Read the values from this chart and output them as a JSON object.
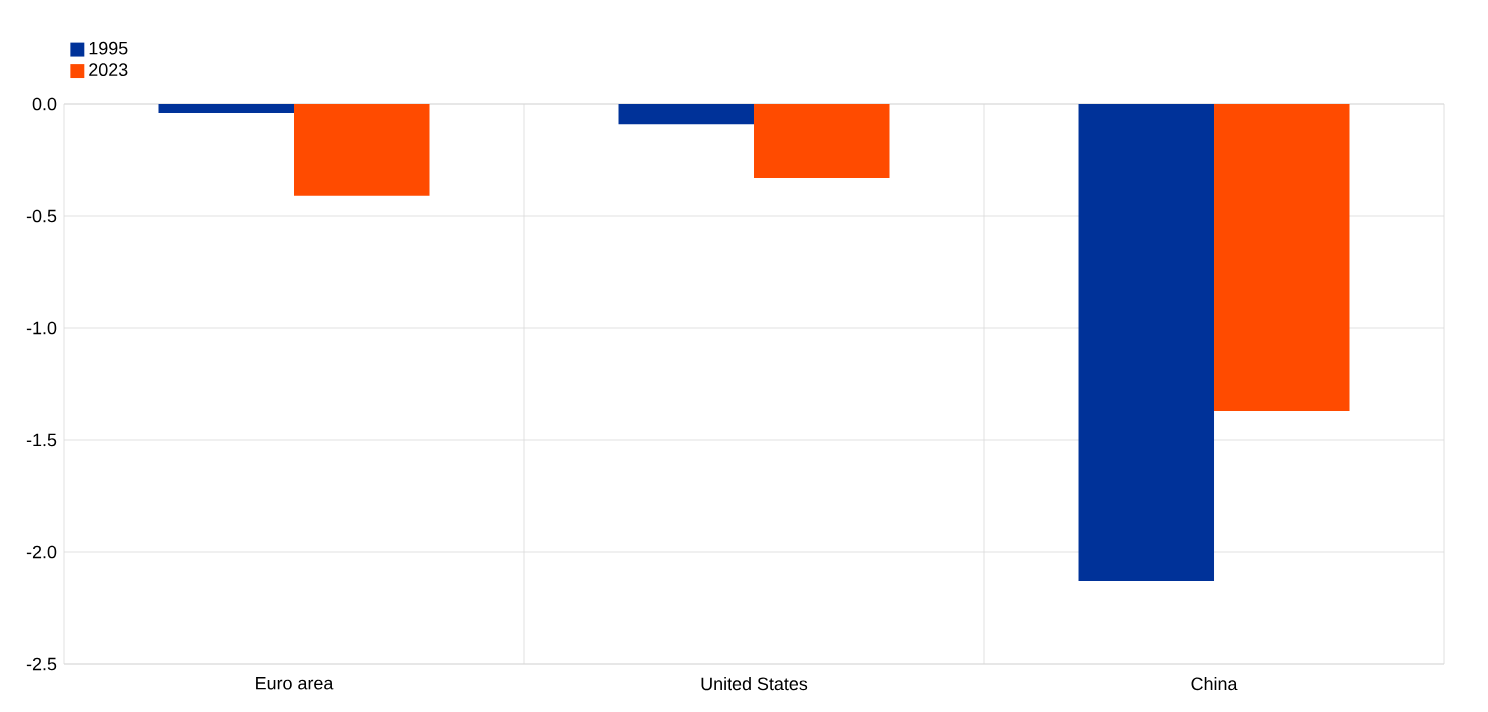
{
  "chart_data": {
    "type": "bar",
    "categories": [
      "Euro area",
      "United States",
      "China"
    ],
    "series": [
      {
        "name": "1995",
        "color": "#003299",
        "values": [
          -0.04,
          -0.09,
          -2.13
        ]
      },
      {
        "name": "2023",
        "color": "#ff4b00",
        "values": [
          -0.41,
          -0.33,
          -1.37
        ]
      }
    ],
    "ylim": [
      -2.5,
      0.0
    ],
    "yticks": [
      {
        "value": 0.0,
        "label": "0.0"
      },
      {
        "value": -0.5,
        "label": "-0.5"
      },
      {
        "value": -1.0,
        "label": "-1.0"
      },
      {
        "value": -1.5,
        "label": "-1.5"
      },
      {
        "value": -2.0,
        "label": "-2.0"
      },
      {
        "value": -2.5,
        "label": "-2.5"
      }
    ],
    "grid": true,
    "legend": "top left"
  }
}
